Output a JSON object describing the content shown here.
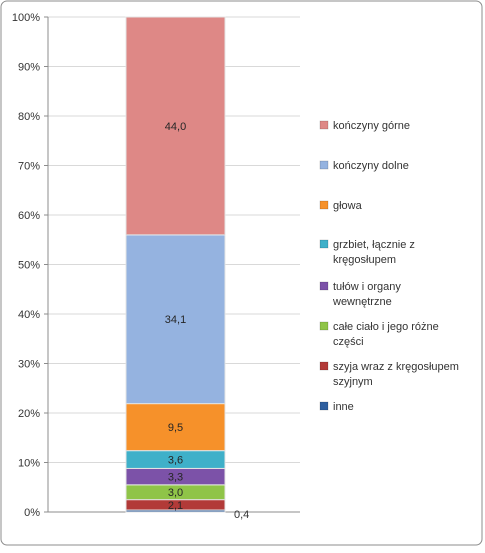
{
  "chart_data": {
    "type": "bar",
    "stacked": true,
    "percent_axis": true,
    "categories": [
      ""
    ],
    "ylim": [
      0,
      100
    ],
    "y_ticks": [
      "0%",
      "10%",
      "20%",
      "30%",
      "40%",
      "50%",
      "60%",
      "70%",
      "80%",
      "90%",
      "100%"
    ],
    "grid": true,
    "legend_position": "right",
    "series": [
      {
        "name": "inne",
        "value": 0.4,
        "label": "0,4",
        "color": "#2e5e9e"
      },
      {
        "name": "szyja wraz z kręgosłupem szyjnym",
        "value": 2.1,
        "label": "2,1",
        "color": "#b23a38"
      },
      {
        "name": "całe ciało i jego różne części",
        "value": 3.0,
        "label": "3,0",
        "color": "#8fc448"
      },
      {
        "name": "tułów i organy wewnętrzne",
        "value": 3.3,
        "label": "3,3",
        "color": "#7c52a8"
      },
      {
        "name": "grzbiet, łącznie z kręgosłupem",
        "value": 3.6,
        "label": "3,6",
        "color": "#3fb0c9"
      },
      {
        "name": "głowa",
        "value": 9.5,
        "label": "9,5",
        "color": "#f6912a"
      },
      {
        "name": "kończyny dolne",
        "value": 34.1,
        "label": "34,1",
        "color": "#95b3e0"
      },
      {
        "name": "kończyny górne",
        "value": 44.0,
        "label": "44,0",
        "color": "#de8886"
      }
    ],
    "legend_order": [
      "kończyny górne",
      "kończyny dolne",
      "głowa",
      "grzbiet, łącznie z kręgosłupem",
      "tułów i organy wewnętrzne",
      "całe ciało i jego różne części",
      "szyja wraz z kręgosłupem szyjnym",
      "inne"
    ],
    "legend_lines": {
      "kończyny górne": [
        "kończyny górne"
      ],
      "kończyny dolne": [
        "kończyny dolne"
      ],
      "głowa": [
        "głowa"
      ],
      "grzbiet, łącznie z kręgosłupem": [
        "grzbiet, łącznie z",
        "kręgosłupem"
      ],
      "tułów i organy wewnętrzne": [
        "tułów i organy",
        "wewnętrzne"
      ],
      "całe ciało i jego różne części": [
        "całe ciało i jego różne",
        "części"
      ],
      "szyja wraz z kręgosłupem szyjnym": [
        "szyja wraz z kręgosłupem",
        "szyjnym"
      ],
      "inne": [
        "inne"
      ]
    }
  }
}
